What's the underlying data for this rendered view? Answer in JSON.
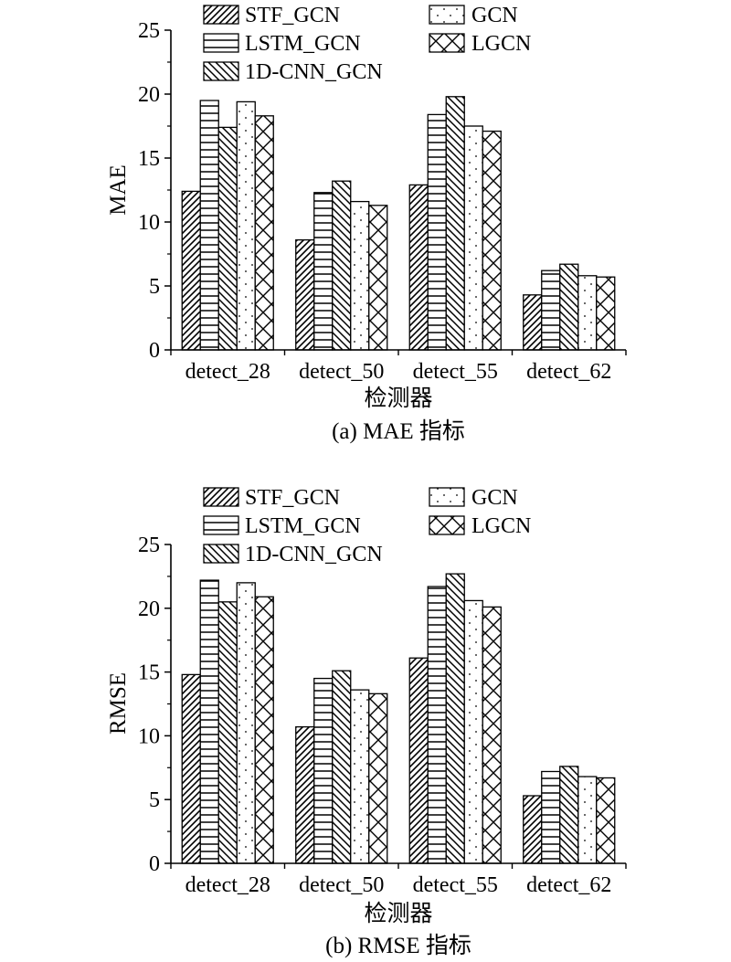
{
  "figure": {
    "background": "#ffffff",
    "ink": "#000000"
  },
  "chart_data": [
    {
      "type": "bar",
      "categories": [
        "detect_28",
        "detect_50",
        "detect_55",
        "detect_62"
      ],
      "series": [
        {
          "name": "STF_GCN",
          "pattern": "diagonal-forward",
          "values": [
            12.4,
            8.6,
            12.9,
            4.3
          ]
        },
        {
          "name": "LSTM_GCN",
          "pattern": "horizontal-lines",
          "values": [
            19.5,
            12.3,
            18.4,
            6.2
          ]
        },
        {
          "name": "1D-CNN_GCN",
          "pattern": "diagonal-backward",
          "values": [
            17.4,
            13.2,
            19.8,
            6.7
          ]
        },
        {
          "name": "GCN",
          "pattern": "dots",
          "values": [
            19.4,
            11.6,
            17.5,
            5.8
          ]
        },
        {
          "name": "LGCN",
          "pattern": "cross-hatch",
          "values": [
            18.3,
            11.3,
            17.1,
            5.7
          ]
        }
      ],
      "xlabel": "检测器",
      "ylabel": "MAE",
      "ylim": [
        0,
        25
      ],
      "yticks": [
        0,
        5,
        10,
        15,
        20,
        25
      ],
      "caption": "(a) MAE 指标",
      "grid": false,
      "legend": "top"
    },
    {
      "type": "bar",
      "categories": [
        "detect_28",
        "detect_50",
        "detect_55",
        "detect_62"
      ],
      "series": [
        {
          "name": "STF_GCN",
          "pattern": "diagonal-forward",
          "values": [
            14.8,
            10.7,
            16.1,
            5.3
          ]
        },
        {
          "name": "LSTM_GCN",
          "pattern": "horizontal-lines",
          "values": [
            22.2,
            14.5,
            21.7,
            7.2
          ]
        },
        {
          "name": "1D-CNN_GCN",
          "pattern": "diagonal-backward",
          "values": [
            20.5,
            15.1,
            22.7,
            7.6
          ]
        },
        {
          "name": "GCN",
          "pattern": "dots",
          "values": [
            22.0,
            13.6,
            20.6,
            6.8
          ]
        },
        {
          "name": "LGCN",
          "pattern": "cross-hatch",
          "values": [
            20.9,
            13.3,
            20.1,
            6.7
          ]
        }
      ],
      "xlabel": "检测器",
      "ylabel": "RMSE",
      "ylim": [
        0,
        25
      ],
      "yticks": [
        0,
        5,
        10,
        15,
        20,
        25
      ],
      "caption": "(b) RMSE 指标",
      "grid": false,
      "legend": "top"
    }
  ]
}
